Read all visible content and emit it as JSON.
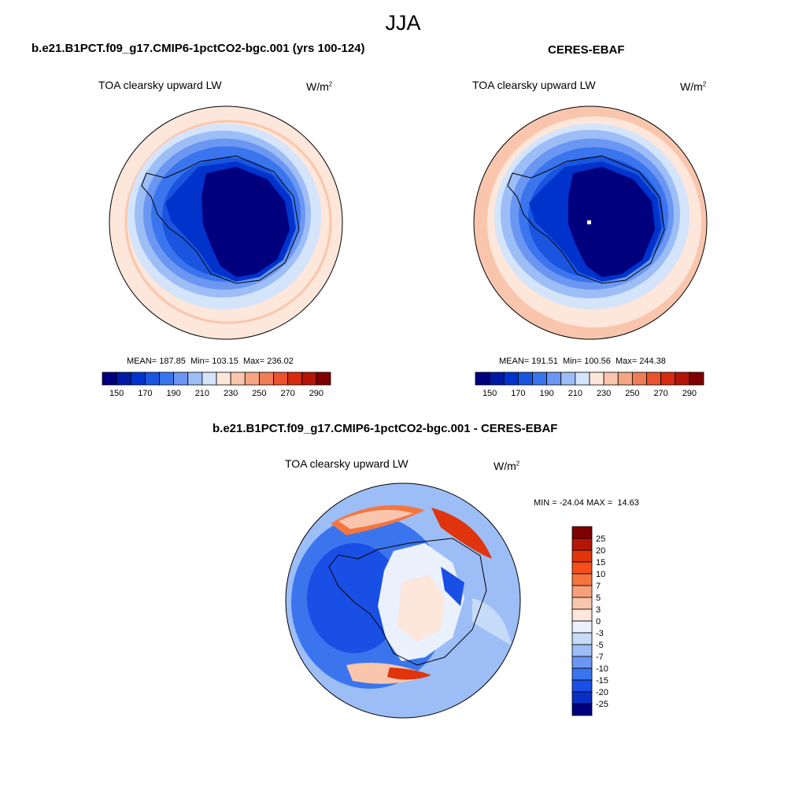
{
  "title": "JJA",
  "panels": [
    {
      "case_title": "b.e21.B1PCT.f09_g17.CMIP6-1pctCO2-bgc.001 (yrs 100-124)",
      "variable": "TOA clearsky upward LW",
      "units_base": "W/m",
      "units_exp": "2",
      "stats": "MEAN= 187.85  Min= 103.15  Max= 236.02"
    },
    {
      "case_title": "CERES-EBAF",
      "variable": "TOA clearsky upward LW",
      "units_base": "W/m",
      "units_exp": "2",
      "stats": "MEAN= 191.51  Min= 100.56  Max= 244.38"
    },
    {
      "case_title": "b.e21.B1PCT.f09_g17.CMIP6-1pctCO2-bgc.001 - CERES-EBAF",
      "variable": "TOA clearsky upward LW",
      "units_base": "W/m",
      "units_exp": "2",
      "stats": "MIN = -24.04 MAX =  14.63"
    }
  ],
  "colorbar_abs": {
    "labels": [
      "150",
      "170",
      "190",
      "210",
      "230",
      "250",
      "270",
      "290"
    ],
    "colors": [
      "#00007f",
      "#001aa6",
      "#0033cc",
      "#1a55e0",
      "#3a75ee",
      "#6b96f2",
      "#9dbdf6",
      "#d4e4fb",
      "#fde6da",
      "#f9c6ad",
      "#f5a584",
      "#ef7d58",
      "#e9532e",
      "#d52b0f",
      "#b31506",
      "#7f0000"
    ]
  },
  "colorbar_diff": {
    "labels": [
      "25",
      "20",
      "15",
      "10",
      "7",
      "5",
      "3",
      "0",
      "-3",
      "-5",
      "-7",
      "-10",
      "-15",
      "-20",
      "-25"
    ],
    "colors": [
      "#7f0000",
      "#b31506",
      "#e0340c",
      "#f5501c",
      "#f5753f",
      "#f5a07a",
      "#f9c6ad",
      "#fde6da",
      "#eaf1fc",
      "#c6dbf7",
      "#9dbdf6",
      "#6b96f2",
      "#3a75ee",
      "#1a4fe6",
      "#0a2fc4",
      "#00007f"
    ]
  },
  "chart_data": [
    {
      "type": "heatmap",
      "title": "TOA clearsky upward LW",
      "projection": "south polar stereographic",
      "units": "W/m2",
      "mean": 187.85,
      "min": 103.15,
      "max": 236.02,
      "levels": [
        150,
        170,
        190,
        210,
        230,
        250,
        270,
        290
      ]
    },
    {
      "type": "heatmap",
      "title": "TOA clearsky upward LW",
      "projection": "south polar stereographic",
      "units": "W/m2",
      "mean": 191.51,
      "min": 100.56,
      "max": 244.38,
      "levels": [
        150,
        170,
        190,
        210,
        230,
        250,
        270,
        290
      ]
    },
    {
      "type": "heatmap",
      "title": "TOA clearsky upward LW",
      "projection": "south polar stereographic",
      "units": "W/m2",
      "min": -24.04,
      "max": 14.63,
      "levels": [
        -25,
        -20,
        -15,
        -10,
        -7,
        -5,
        -3,
        0,
        3,
        5,
        7,
        10,
        15,
        20,
        25
      ]
    }
  ]
}
